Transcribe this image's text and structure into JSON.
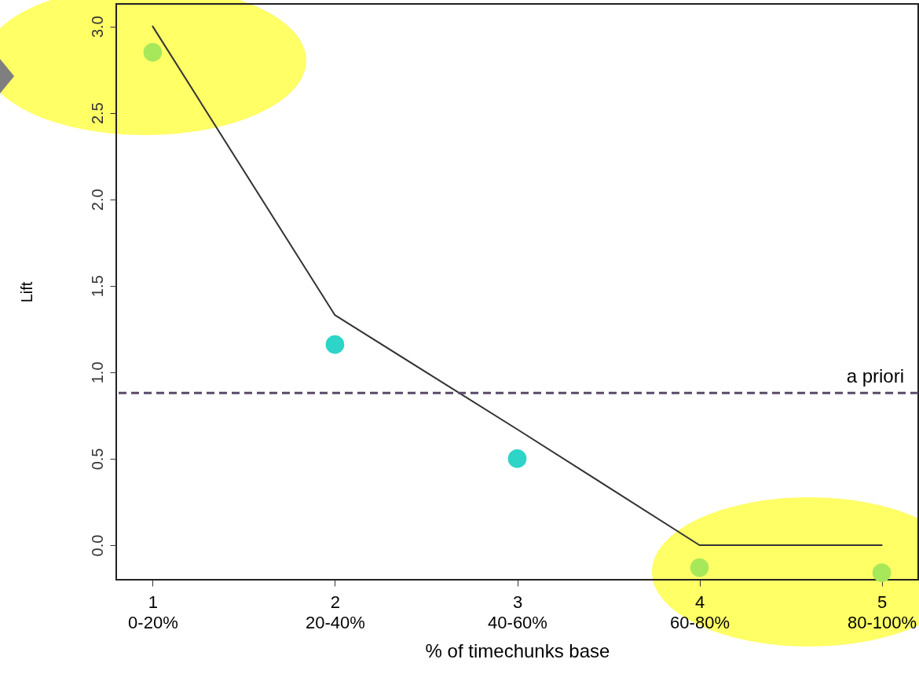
{
  "chart_data": {
    "type": "line",
    "xlabel": "% of timechunks base",
    "ylabel": "Lift",
    "ylim": [
      -0.2,
      3.13
    ],
    "yticks": [
      {
        "value": 0,
        "label": "0.0"
      },
      {
        "value": 0.5,
        "label": "0.5"
      },
      {
        "value": 1,
        "label": "1.0"
      },
      {
        "value": 1.5,
        "label": "1.5"
      },
      {
        "value": 2,
        "label": "2.0"
      },
      {
        "value": 2.5,
        "label": "2.5"
      },
      {
        "value": 3,
        "label": "3.0"
      }
    ],
    "categories": [
      "1\n0-20%",
      "2\n20-40%",
      "3\n40-60%",
      "4\n60-80%",
      "5\n80-100%"
    ],
    "series": [
      {
        "color": "#333333",
        "values": [
          3.0,
          1.33,
          0.67,
          0,
          0
        ]
      },
      {
        "type": "scatter",
        "marker": "circle",
        "colors": [
          "#a6e85a",
          "#2dd4c8",
          "#2dd4c8",
          "#a6e85a",
          "#a6e85a"
        ],
        "values": [
          2.85,
          1.16,
          0.5,
          -0.13,
          -0.16
        ]
      }
    ],
    "ref_lines": [
      {
        "axis": "y",
        "value": 0.88,
        "label": "a priori",
        "color": "#5b4a6b",
        "line_style": "dashed"
      }
    ],
    "grid": false
  }
}
